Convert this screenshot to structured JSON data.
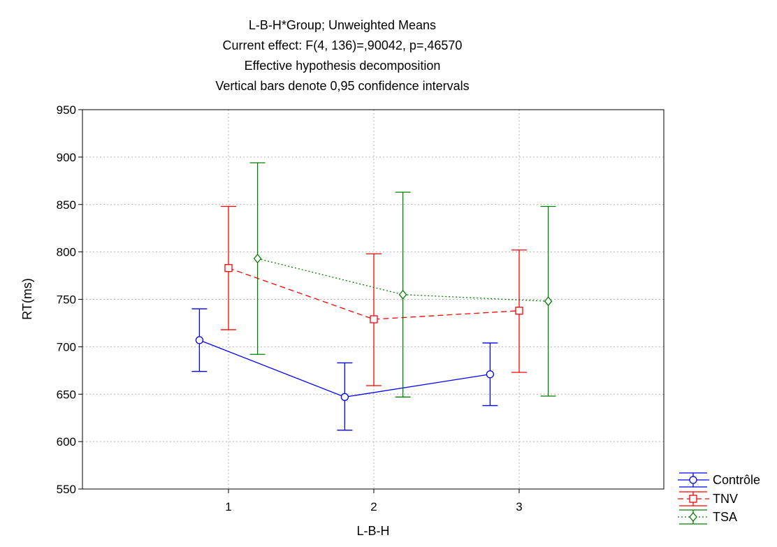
{
  "chart_data": {
    "type": "line",
    "title_lines": [
      "L-B-H*Group; Unweighted Means",
      "Current effect: F(4, 136)=,90042, p=,46570",
      "Effective hypothesis decomposition",
      "Vertical bars denote 0,95 confidence intervals"
    ],
    "xlabel": "L-B-H",
    "ylabel": "RT(ms)",
    "categories": [
      "1",
      "2",
      "3"
    ],
    "ylim": [
      550,
      950
    ],
    "yticks": [
      "550",
      "600",
      "650",
      "700",
      "750",
      "800",
      "850",
      "900",
      "950"
    ],
    "grid": true,
    "legend_position": "bottom-right, outside plot",
    "series": [
      {
        "name": "Contrôle",
        "color": "#0000ff",
        "line_style": "solid",
        "marker": "circle",
        "offset": -0.2,
        "values": [
          707,
          647,
          671
        ],
        "ci_low": [
          674,
          612,
          638
        ],
        "ci_high": [
          740,
          683,
          704
        ]
      },
      {
        "name": "TNV",
        "color": "#ff0000",
        "line_style": "dashed",
        "marker": "square",
        "offset": 0,
        "values": [
          783,
          729,
          738
        ],
        "ci_low": [
          718,
          659,
          673
        ],
        "ci_high": [
          848,
          798,
          802
        ]
      },
      {
        "name": "TSA",
        "color": "#008000",
        "line_style": "dotted",
        "marker": "diamond",
        "offset": 0.2,
        "values": [
          793,
          755,
          748
        ],
        "ci_low": [
          692,
          647,
          648
        ],
        "ci_high": [
          894,
          863,
          848
        ]
      }
    ]
  }
}
